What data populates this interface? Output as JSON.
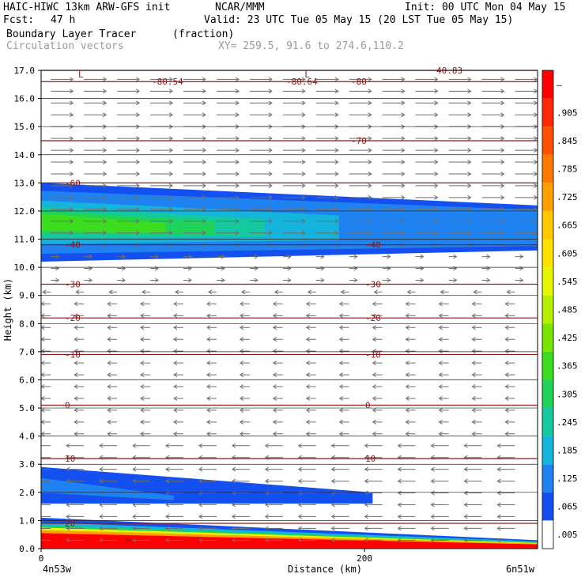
{
  "header": {
    "model": "HAIC-HIWC 13km ARW-GFS init",
    "org": "NCAR/MMM",
    "init": "Init: 00 UTC Mon 04 May 15",
    "fcst_label": "Fcst:",
    "fcst_value": "47 h",
    "valid": "Valid: 23 UTC Tue 05 May 15 (20 LST Tue 05 May 15)",
    "field_name": "Boundary Layer Tracer",
    "field_units": "(fraction)",
    "vector_name": "Circulation vectors",
    "xy": "XY= 259.5, 91.6 to 274.6,110.2"
  },
  "chart_data": {
    "type": "heatmap",
    "xlabel": "Distance (km)",
    "ylabel": "Height (km)",
    "xlim": [
      0,
      307
    ],
    "ylim": [
      0,
      17
    ],
    "x_ticks": [
      {
        "value": 0,
        "label": "0"
      },
      {
        "value": 200,
        "label": "200"
      }
    ],
    "x_end_labels": [
      "4n53w",
      "6n51w"
    ],
    "y_ticks": [
      0,
      1,
      2,
      3,
      4,
      5,
      6,
      7,
      8,
      9,
      10,
      11,
      12,
      13,
      14,
      15,
      16,
      17
    ],
    "y_tick_labels": [
      "0.0",
      "1.0",
      "2.0",
      "3.0",
      "4.0",
      "5.0",
      "6.0",
      "7.0",
      "8.0",
      "9.0",
      "10.0",
      "11.0",
      "12.0",
      "13.0",
      "14.0",
      "15.0",
      "16.0",
      "17.0"
    ],
    "colorbar": {
      "labels": [
        "–",
        ".905",
        ".845",
        ".785",
        ".725",
        ".665",
        ".605",
        ".545",
        ".485",
        ".425",
        ".365",
        ".305",
        ".245",
        ".185",
        ".125",
        ".065",
        ".005"
      ],
      "colors": [
        "#ff0000",
        "#ff2a00",
        "#ff5000",
        "#ff7800",
        "#ffa000",
        "#ffc800",
        "#ffe100",
        "#e6f500",
        "#b4f000",
        "#78e600",
        "#3cdc1e",
        "#1ed25a",
        "#14c8a0",
        "#14b4dc",
        "#1e82f0",
        "#1450f0",
        "#ffffff"
      ]
    },
    "tracer_regions": [
      {
        "name": "upper-layer",
        "x": [
          0,
          307
        ],
        "y_bottom_km": [
          10.2,
          10.6
        ],
        "y_top_km": [
          13.0,
          12.2
        ],
        "peak": 0.3
      },
      {
        "name": "boundary-layer",
        "x": [
          0,
          307
        ],
        "y_bottom_km": [
          0,
          0
        ],
        "y_top_km": [
          1.1,
          0.3
        ],
        "peak": 0.99
      },
      {
        "name": "mid-plume",
        "x": [
          0,
          205
        ],
        "y_bottom_km": [
          1.6,
          1.6
        ],
        "y_top_km": [
          2.9,
          2.0
        ],
        "peak": 0.06
      }
    ],
    "isotherms": [
      {
        "label": "-80.54",
        "y": 16.6
      },
      {
        "label": "-80.64",
        "y": 16.6
      },
      {
        "label": "-80",
        "y": 16.6
      },
      {
        "label": "-70",
        "y": 14.5
      },
      {
        "label": "-60",
        "y": 13.0
      },
      {
        "label": "-40",
        "y": 10.8
      },
      {
        "label": "-40",
        "y": 10.8
      },
      {
        "label": "-30",
        "y": 9.4
      },
      {
        "label": "-30",
        "y": 9.4
      },
      {
        "label": "-20",
        "y": 8.2
      },
      {
        "label": "-20",
        "y": 8.2
      },
      {
        "label": "-10",
        "y": 6.9
      },
      {
        "label": "-10",
        "y": 6.9
      },
      {
        "label": "0",
        "y": 5.1
      },
      {
        "label": "0",
        "y": 5.1
      },
      {
        "label": "10",
        "y": 3.2
      },
      {
        "label": "10",
        "y": 3.2
      },
      {
        "label": "20",
        "y": 0.9
      },
      {
        "label": "40.83",
        "y": 17.0
      }
    ],
    "extra_marks": [
      "L",
      "L",
      "H"
    ]
  }
}
